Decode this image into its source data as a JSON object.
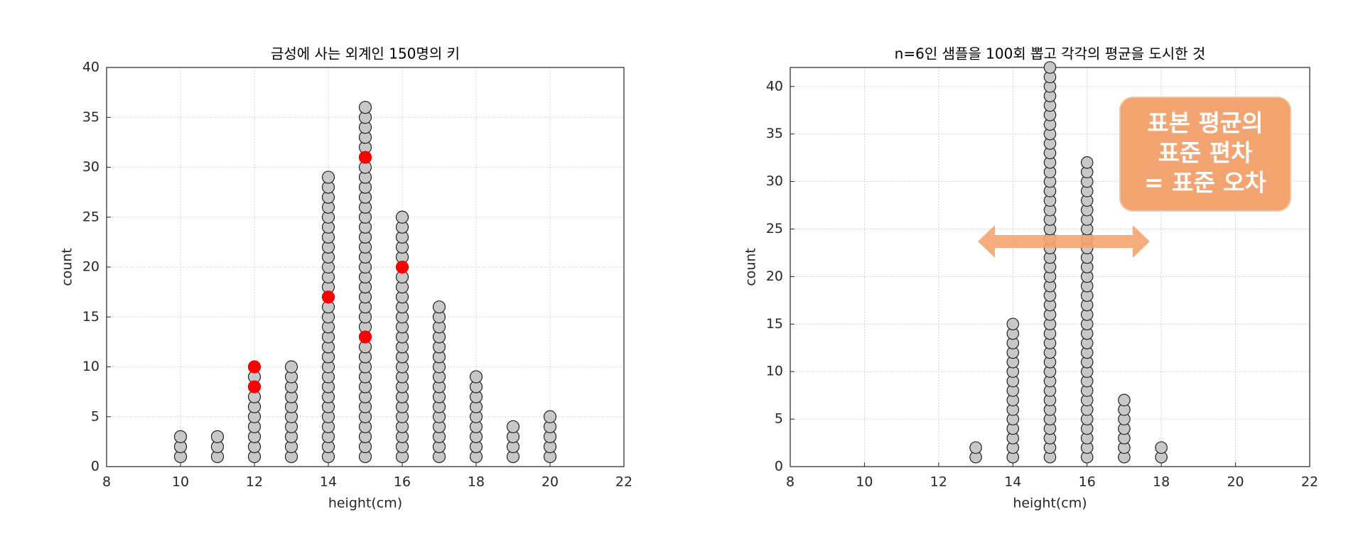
{
  "chart_data": [
    {
      "type": "dotplot",
      "title": "금성에 사는 외계인 150명의 키",
      "xlabel": "height(cm)",
      "ylabel": "count",
      "x": [
        10,
        11,
        12,
        13,
        14,
        15,
        16,
        17,
        18,
        19,
        20
      ],
      "values": [
        3,
        3,
        10,
        10,
        29,
        36,
        25,
        16,
        9,
        4,
        5
      ],
      "color": "#c8c8c8",
      "xlim": [
        8,
        22
      ],
      "xticks": [
        8,
        10,
        12,
        14,
        16,
        18,
        20,
        22
      ],
      "ylim": [
        0,
        40
      ],
      "yticks": [
        0,
        5,
        10,
        15,
        20,
        25,
        30,
        35,
        40
      ],
      "grid": true,
      "highlights": {
        "color": "#ff0000",
        "points": [
          {
            "x": 12,
            "y": 8
          },
          {
            "x": 12,
            "y": 10
          },
          {
            "x": 14,
            "y": 17
          },
          {
            "x": 15,
            "y": 13
          },
          {
            "x": 15,
            "y": 31
          },
          {
            "x": 16,
            "y": 20
          }
        ]
      }
    },
    {
      "type": "dotplot",
      "title": "n=6인 샘플을 100회 뽑고 각각의 평균을 도시한 것",
      "xlabel": "height(cm)",
      "ylabel": "count",
      "x": [
        13,
        14,
        15,
        16,
        17,
        18
      ],
      "values": [
        2,
        15,
        42,
        32,
        7,
        2
      ],
      "color": "#c8c8c8",
      "xlim": [
        8,
        22
      ],
      "xticks": [
        8,
        10,
        12,
        14,
        16,
        18,
        20,
        22
      ],
      "ylim": [
        0,
        42
      ],
      "yticks": [
        0,
        5,
        10,
        15,
        20,
        25,
        30,
        35,
        40
      ],
      "grid": true,
      "annotation": {
        "lines": [
          "표본 평균의",
          "표준 편차",
          "= 표준 오차"
        ],
        "color": "#f4a470"
      }
    }
  ]
}
